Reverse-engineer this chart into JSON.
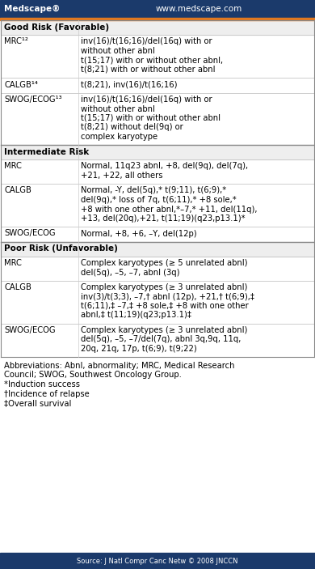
{
  "header_bg": "#1b3a6b",
  "header_text_color": "#ffffff",
  "header_left": "Medscape®",
  "header_right": "www.medscape.com",
  "orange_line_color": "#e07820",
  "bg_color": "#ffffff",
  "section_bg": "#eeeeee",
  "rows": [
    {
      "type": "section",
      "text": "Good Risk (Favorable)"
    },
    {
      "type": "data",
      "col1": "MRC¹²",
      "col2": [
        "inv(16)/t(16;16)/del(16q) with or",
        "without other abnl",
        "t(15;17) with or without other abnl,",
        "t(8;21) with or without other abnl"
      ]
    },
    {
      "type": "data",
      "col1": "CALGB¹⁴",
      "col2": [
        "t(8;21), inv(16)/t(16;16)"
      ]
    },
    {
      "type": "data",
      "col1": "SWOG/ECOG¹³",
      "col2": [
        "inv(16)/t(16;16)/del(16q) with or",
        "without other abnl",
        "t(15;17) with or without other abnl",
        "t(8;21) without del(9q) or",
        "complex karyotype"
      ]
    },
    {
      "type": "section",
      "text": "Intermediate Risk"
    },
    {
      "type": "data",
      "col1": "MRC",
      "col2": [
        "Normal, 11q23 abnl, +8, del(9q), del(7q),",
        "+21, +22, all others"
      ]
    },
    {
      "type": "data",
      "col1": "CALGB",
      "col2": [
        "Normal, -Y, del(5q),* t(9;11), t(6;9),*",
        "del(9q),* loss of 7q, t(6;11),* +8 sole,*",
        "+8 with one other abnl,*–7,* +11, del(11q),",
        "+13, del(20q),+21, t(11;19)(q23,p13.1)*"
      ]
    },
    {
      "type": "data",
      "col1": "SWOG/ECOG",
      "col2": [
        "Normal, +8, +6, –Y, del(12p)"
      ]
    },
    {
      "type": "section",
      "text": "Poor Risk (Unfavorable)"
    },
    {
      "type": "data",
      "col1": "MRC",
      "col2": [
        "Complex karyotypes (≥ 5 unrelated abnl)",
        "del(5q), –5, –7, abnl (3q)"
      ]
    },
    {
      "type": "data",
      "col1": "CALGB",
      "col2": [
        "Complex karyotypes (≥ 3 unrelated abnl)",
        "inv(3)/t(3;3), –7,† abnl (12p), +21,† t(6;9),‡",
        "t(6;11),‡ –7,‡ +8 sole,‡ +8 with one other",
        "abnl,‡ t(11;19)(q23;p13.1)‡"
      ]
    },
    {
      "type": "data",
      "col1": "SWOG/ECOG",
      "col2": [
        "Complex karyotypes (≥ 3 unrelated abnl)",
        "del(5q), –5, –7/del(7q), abnl 3q,9q, 11q,",
        "20q, 21q, 17p, t(6;9), t(9;22)"
      ]
    }
  ],
  "footnotes": [
    "Abbreviations: Abnl, abnormality; MRC, Medical Research",
    "Council; SWOG, Southwest Oncology Group.",
    "*Induction success",
    "†Incidence of relapse",
    "‡Overall survival"
  ],
  "source": "Source: J Natl Compr Canc Netw © 2008 JNCCN",
  "footer_bg": "#1b3a6b",
  "footer_text_color": "#ffffff"
}
